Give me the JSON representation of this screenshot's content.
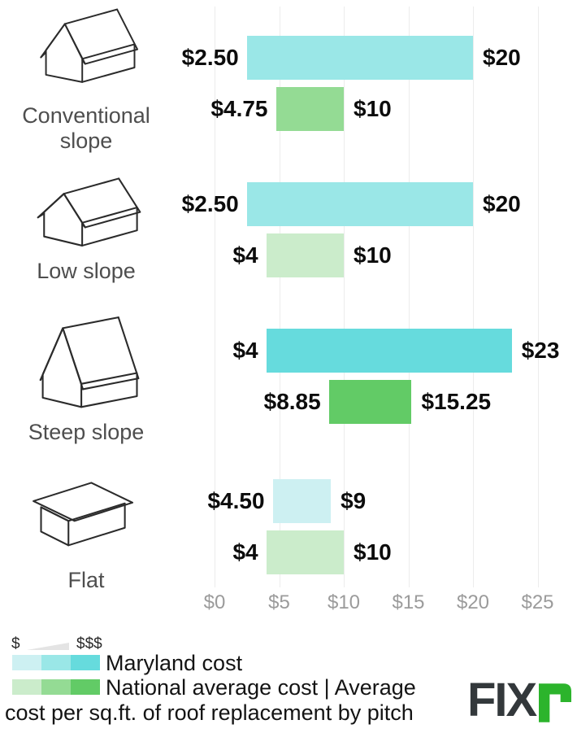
{
  "chart_data": {
    "type": "bar",
    "orientation": "horizontal-range",
    "title": "Average cost per sq.ft. of roof replacement by pitch",
    "categories": [
      "Conventional slope",
      "Low slope",
      "Steep slope",
      "Flat"
    ],
    "series": [
      {
        "name": "Maryland cost",
        "ranges": [
          [
            2.5,
            20
          ],
          [
            2.5,
            20
          ],
          [
            4,
            23
          ],
          [
            4.5,
            9
          ]
        ],
        "range_labels": [
          [
            "$2.50",
            "$20"
          ],
          [
            "$2.50",
            "$20"
          ],
          [
            "$4",
            "$23"
          ],
          [
            "$4.50",
            "$9"
          ]
        ],
        "bar_colors": [
          "#9ae7e7",
          "#9ae7e7",
          "#66dbdd",
          "#cdf0f2"
        ]
      },
      {
        "name": "National average cost",
        "ranges": [
          [
            4.75,
            10
          ],
          [
            4,
            10
          ],
          [
            8.85,
            15.25
          ],
          [
            4,
            10
          ]
        ],
        "range_labels": [
          [
            "$4.75",
            "$10"
          ],
          [
            "$4",
            "$10"
          ],
          [
            "$8.85",
            "$15.25"
          ],
          [
            "$4",
            "$10"
          ]
        ],
        "bar_colors": [
          "#94db94",
          "#cbeccb",
          "#62cb66",
          "#cbeccb"
        ]
      }
    ],
    "xlim": [
      0,
      25
    ],
    "x_ticks": [
      "$0",
      "$5",
      "$10",
      "$15",
      "$20",
      "$25"
    ],
    "x_tick_values": [
      0,
      5,
      10,
      15,
      20,
      25
    ],
    "grid": true,
    "legend_position": "bottom-left"
  },
  "legend": {
    "scale_min": "$",
    "scale_max": "$$$",
    "maryland_label": "Maryland cost",
    "national_label_line": "National average cost | Average",
    "caption_line": "cost per sq.ft. of roof replacement by pitch",
    "maryland_swatches": [
      "#cdf0f2",
      "#9ae7e7",
      "#66dbdd"
    ],
    "national_swatches": [
      "#cbeccb",
      "#94db94",
      "#62cb66"
    ]
  },
  "logo": {
    "text_dark": "FIX",
    "text_green": "r",
    "dark_color": "#33383b",
    "green_color": "#2cb42c"
  }
}
